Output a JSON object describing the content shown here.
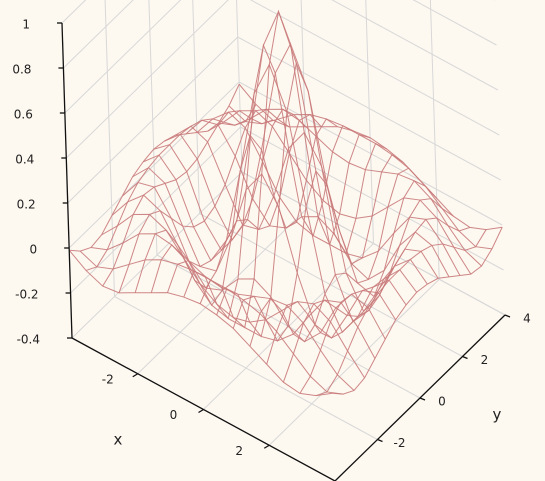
{
  "chart_data": {
    "type": "wireframe",
    "x_label": "x",
    "y_label": "y",
    "color": "#c97a7a",
    "x": [
      -4,
      -3.5,
      -3,
      -2.5,
      -2,
      -1.5,
      -1,
      -0.5,
      0,
      0.5,
      1,
      1.5,
      2,
      2.5,
      3,
      3.5,
      4
    ],
    "y": [
      -4,
      -3.5,
      -3,
      -2.5,
      -2,
      -1.5,
      -1,
      -0.5,
      0,
      0.5,
      1,
      1.5,
      2,
      2.5,
      3,
      3.5,
      4
    ],
    "z": [
      [
        -0.01,
        -0.06,
        -0.09,
        -0.08,
        -0.04,
        0,
        0.04,
        0.06,
        0.07,
        0.06,
        0.04,
        0,
        -0.04,
        -0.08,
        -0.09,
        -0.06,
        -0.01
      ],
      [
        -0.06,
        -0.09,
        -0.06,
        0,
        0.06,
        0.1,
        0.12,
        0.13,
        0.13,
        0.13,
        0.12,
        0.1,
        0.06,
        0,
        -0.06,
        -0.09,
        -0.06
      ],
      [
        -0.09,
        -0.06,
        0.01,
        0.09,
        0.13,
        0.12,
        0.09,
        0.06,
        0.05,
        0.06,
        0.09,
        0.12,
        0.13,
        0.09,
        0.01,
        -0.06,
        -0.09
      ],
      [
        -0.08,
        0,
        0.09,
        0.13,
        0.1,
        0.02,
        -0.06,
        -0.11,
        -0.13,
        -0.11,
        -0.06,
        0.02,
        0.1,
        0.13,
        0.09,
        0,
        -0.08
      ],
      [
        -0.04,
        0.06,
        0.13,
        0.1,
        -0.01,
        -0.13,
        -0.2,
        -0.22,
        -0.22,
        -0.22,
        -0.2,
        -0.13,
        -0.01,
        0.1,
        0.13,
        0.06,
        -0.04
      ],
      [
        0,
        0.1,
        0.12,
        0.02,
        -0.13,
        -0.21,
        -0.18,
        -0.09,
        -0.05,
        -0.09,
        -0.18,
        -0.21,
        -0.13,
        0.02,
        0.12,
        0.1,
        0
      ],
      [
        0.04,
        0.12,
        0.09,
        -0.06,
        -0.2,
        -0.18,
        0.01,
        0.26,
        0.37,
        0.26,
        0.01,
        -0.18,
        -0.2,
        -0.06,
        0.09,
        0.12,
        0.04
      ],
      [
        0.06,
        0.13,
        0.06,
        -0.11,
        -0.22,
        -0.09,
        0.26,
        0.64,
        0.81,
        0.64,
        0.26,
        -0.09,
        -0.22,
        -0.11,
        0.06,
        0.13,
        0.06
      ],
      [
        0.07,
        0.13,
        0.05,
        -0.13,
        -0.22,
        -0.05,
        0.37,
        0.81,
        1,
        0.81,
        0.37,
        -0.05,
        -0.22,
        -0.13,
        0.05,
        0.13,
        0.07
      ],
      [
        0.06,
        0.13,
        0.06,
        -0.11,
        -0.22,
        -0.09,
        0.26,
        0.64,
        0.81,
        0.64,
        0.26,
        -0.09,
        -0.22,
        -0.11,
        0.06,
        0.13,
        0.06
      ],
      [
        0.04,
        0.12,
        0.09,
        -0.06,
        -0.2,
        -0.18,
        0.01,
        0.26,
        0.37,
        0.26,
        0.01,
        -0.18,
        -0.2,
        -0.06,
        0.09,
        0.12,
        0.04
      ],
      [
        0,
        0.1,
        0.12,
        0.02,
        -0.13,
        -0.21,
        -0.18,
        -0.09,
        -0.05,
        -0.09,
        -0.18,
        -0.21,
        -0.13,
        0.02,
        0.12,
        0.1,
        0
      ],
      [
        -0.04,
        0.06,
        0.13,
        0.1,
        -0.01,
        -0.13,
        -0.2,
        -0.22,
        -0.22,
        -0.22,
        -0.2,
        -0.13,
        -0.01,
        0.1,
        0.13,
        0.06,
        -0.04
      ],
      [
        -0.08,
        0,
        0.09,
        0.13,
        0.1,
        0.02,
        -0.06,
        -0.11,
        -0.13,
        -0.11,
        -0.06,
        0.02,
        0.1,
        0.13,
        0.09,
        0,
        -0.08
      ],
      [
        -0.09,
        -0.06,
        0.01,
        0.09,
        0.13,
        0.12,
        0.09,
        0.06,
        0.05,
        0.06,
        0.09,
        0.12,
        0.13,
        0.09,
        0.01,
        -0.06,
        -0.09
      ],
      [
        -0.06,
        -0.09,
        -0.06,
        0,
        0.06,
        0.1,
        0.12,
        0.13,
        0.13,
        0.13,
        0.12,
        0.1,
        0.06,
        0,
        -0.06,
        -0.09,
        -0.06
      ],
      [
        -0.01,
        -0.06,
        -0.09,
        -0.08,
        -0.04,
        0,
        0.04,
        0.06,
        0.07,
        0.06,
        0.04,
        0,
        -0.04,
        -0.08,
        -0.09,
        -0.06,
        -0.01
      ]
    ],
    "xlim": [
      -4,
      4
    ],
    "ylim": [
      -4,
      4
    ],
    "zlim": [
      -0.4,
      1
    ],
    "xticks": [
      -2,
      0,
      2
    ],
    "yticks": [
      -2,
      0,
      2,
      4
    ],
    "zticks": [
      -0.4,
      -0.2,
      0,
      0.2,
      0.4,
      0.6,
      0.8,
      1
    ],
    "grid": true
  }
}
